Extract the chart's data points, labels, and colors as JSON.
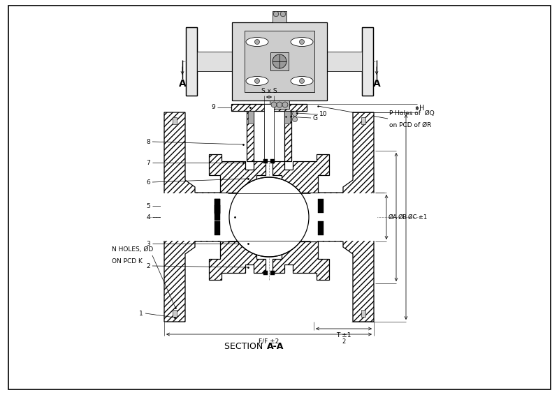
{
  "bg_color": "#ffffff",
  "line_color": "#000000",
  "section_label_plain": "SECTION ",
  "section_label_bold": "A-A",
  "dim_H": "H",
  "dim_A": "ØA",
  "dim_B": "ØB",
  "dim_C": "ØC ±1",
  "dim_FF": "F/F ±2",
  "dim_T": "T ±1",
  "dim_S": "S x S",
  "dim_G": "G",
  "dim_N": "N HOLES, ØD\nON PCD K",
  "dim_P1": "P Holes of  ØQ",
  "dim_P2": "on PCD of ØR",
  "label_A": "A",
  "parts": [
    "1",
    "2",
    "3",
    "4",
    "5",
    "6",
    "7",
    "8",
    "9",
    "10"
  ],
  "hatch": "////",
  "lw_main": 0.9,
  "lw_thin": 0.55,
  "lw_dim": 0.55
}
